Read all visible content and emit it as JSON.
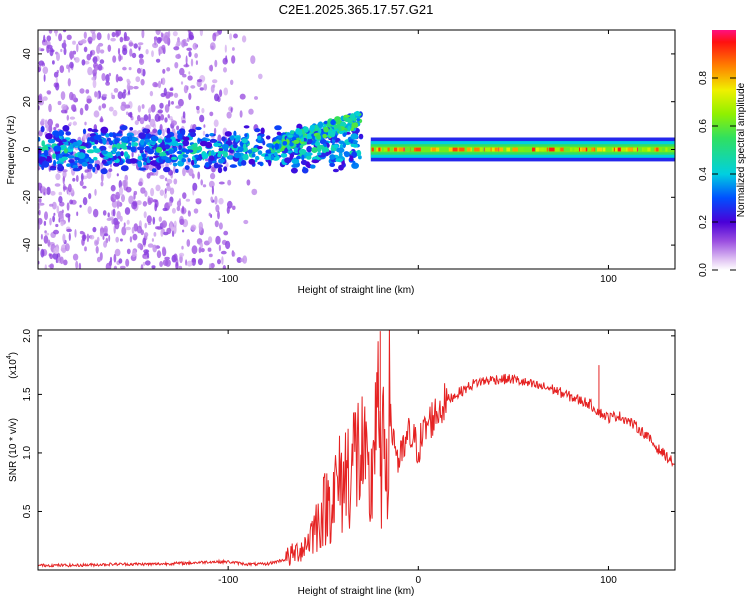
{
  "title": "C2E1.2025.365.17.57.G21",
  "chart_data": [
    {
      "type": "heatmap",
      "xlabel": "Height of straight line (km)",
      "ylabel": "Frequency (Hz)",
      "xlim": [
        -200,
        135
      ],
      "ylim": [
        -50,
        50
      ],
      "xticks": [
        -100,
        0,
        100
      ],
      "xtick_labels": [
        "-100",
        "",
        "100"
      ],
      "yticks": [
        -40,
        -20,
        0,
        20,
        40
      ],
      "ytick_labels": [
        "-40",
        "-20",
        "0",
        "20",
        "40"
      ],
      "colorbar": {
        "label": "Normalized spectral amplitude",
        "range": [
          0,
          1
        ],
        "ticks": [
          0.0,
          0.2,
          0.4,
          0.6,
          0.8
        ],
        "tick_labels": [
          "0.0",
          "0.2",
          "0.4",
          "0.6",
          "0.8"
        ]
      },
      "features": [
        {
          "name": "noise scatter",
          "x_range": [
            -200,
            -80
          ],
          "y_range": [
            -50,
            50
          ],
          "amplitude": [
            0.05,
            0.15
          ]
        },
        {
          "name": "noisy band",
          "x_range": [
            -200,
            -30
          ],
          "y_center": 0,
          "amplitude": [
            0.2,
            0.55
          ]
        },
        {
          "name": "rising branch",
          "x_range": [
            -75,
            -30
          ],
          "y_values": [
            2,
            6,
            10,
            15,
            20
          ],
          "amplitude": [
            0.25,
            0.6
          ]
        },
        {
          "name": "carrier line",
          "x_range": [
            -25,
            135
          ],
          "y_center": 0,
          "amplitude": [
            0.5,
            1.0
          ]
        }
      ]
    },
    {
      "type": "line",
      "xlabel": "Height of straight line (km)",
      "ylabel": "SNR (10 * v/v)",
      "y_scale_label": "(x10",
      "y_scale_exp": "4",
      "xlim": [
        -200,
        135
      ],
      "ylim": [
        0,
        2.05
      ],
      "xticks": [
        -100,
        0,
        100
      ],
      "xtick_labels": [
        "-100",
        "0",
        "100"
      ],
      "yticks": [
        0.5,
        1.0,
        1.5,
        2.0
      ],
      "ytick_labels": [
        "0.5",
        "1.0",
        "1.5",
        "2.0"
      ],
      "color": "#e52222",
      "series": [
        {
          "name": "SNR",
          "x": [
            -200,
            -180,
            -160,
            -140,
            -120,
            -110,
            -100,
            -90,
            -80,
            -70,
            -60,
            -50,
            -45,
            -40,
            -35,
            -30,
            -25,
            -22,
            -20,
            -15,
            -10,
            -5,
            0,
            5,
            10,
            15,
            20,
            30,
            40,
            50,
            60,
            70,
            80,
            90,
            95,
            100,
            105,
            110,
            115,
            120,
            125,
            130,
            135
          ],
          "y": [
            0.04,
            0.04,
            0.05,
            0.05,
            0.06,
            0.07,
            0.07,
            0.05,
            0.05,
            0.09,
            0.2,
            0.5,
            0.65,
            0.75,
            0.95,
            1.0,
            0.6,
            1.6,
            0.8,
            1.3,
            0.9,
            1.15,
            1.05,
            1.25,
            1.35,
            1.45,
            1.5,
            1.6,
            1.63,
            1.63,
            1.58,
            1.55,
            1.48,
            1.42,
            1.35,
            1.3,
            1.32,
            1.28,
            1.22,
            1.15,
            1.05,
            0.98,
            0.9
          ]
        }
      ],
      "spikes": [
        {
          "x": -20,
          "y": 2.04
        },
        {
          "x": 95,
          "y": 1.75
        }
      ]
    }
  ]
}
